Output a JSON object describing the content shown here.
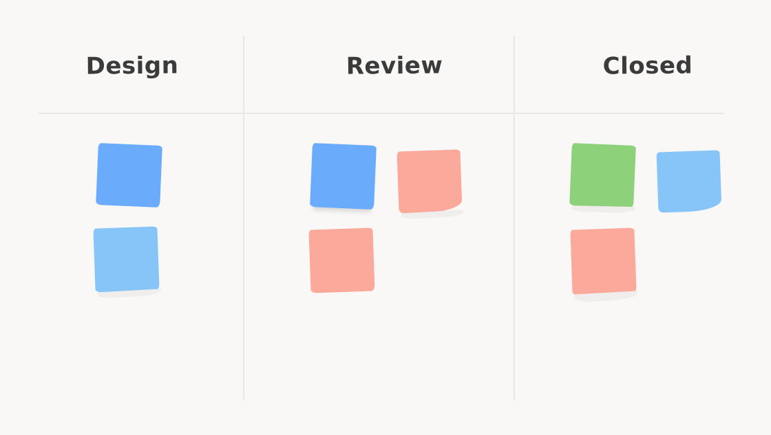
{
  "board": {
    "background": "#f9f8f7",
    "divider_color": "#e9e7e5",
    "title_color": "#3b3b3b",
    "columns": [
      {
        "label": "Design",
        "notes": [
          {
            "tone": "blue",
            "color": "#6babfc"
          },
          {
            "tone": "light-blue",
            "color": "#87c5f9"
          }
        ]
      },
      {
        "label": "Review",
        "notes": [
          {
            "tone": "blue",
            "color": "#6babfc"
          },
          {
            "tone": "salmon",
            "color": "#fba99b"
          },
          {
            "tone": "salmon",
            "color": "#fba99b"
          }
        ]
      },
      {
        "label": "Closed",
        "notes": [
          {
            "tone": "green",
            "color": "#8ed17b"
          },
          {
            "tone": "light-blue",
            "color": "#87c5f9"
          },
          {
            "tone": "salmon",
            "color": "#fba99b"
          }
        ]
      }
    ]
  }
}
